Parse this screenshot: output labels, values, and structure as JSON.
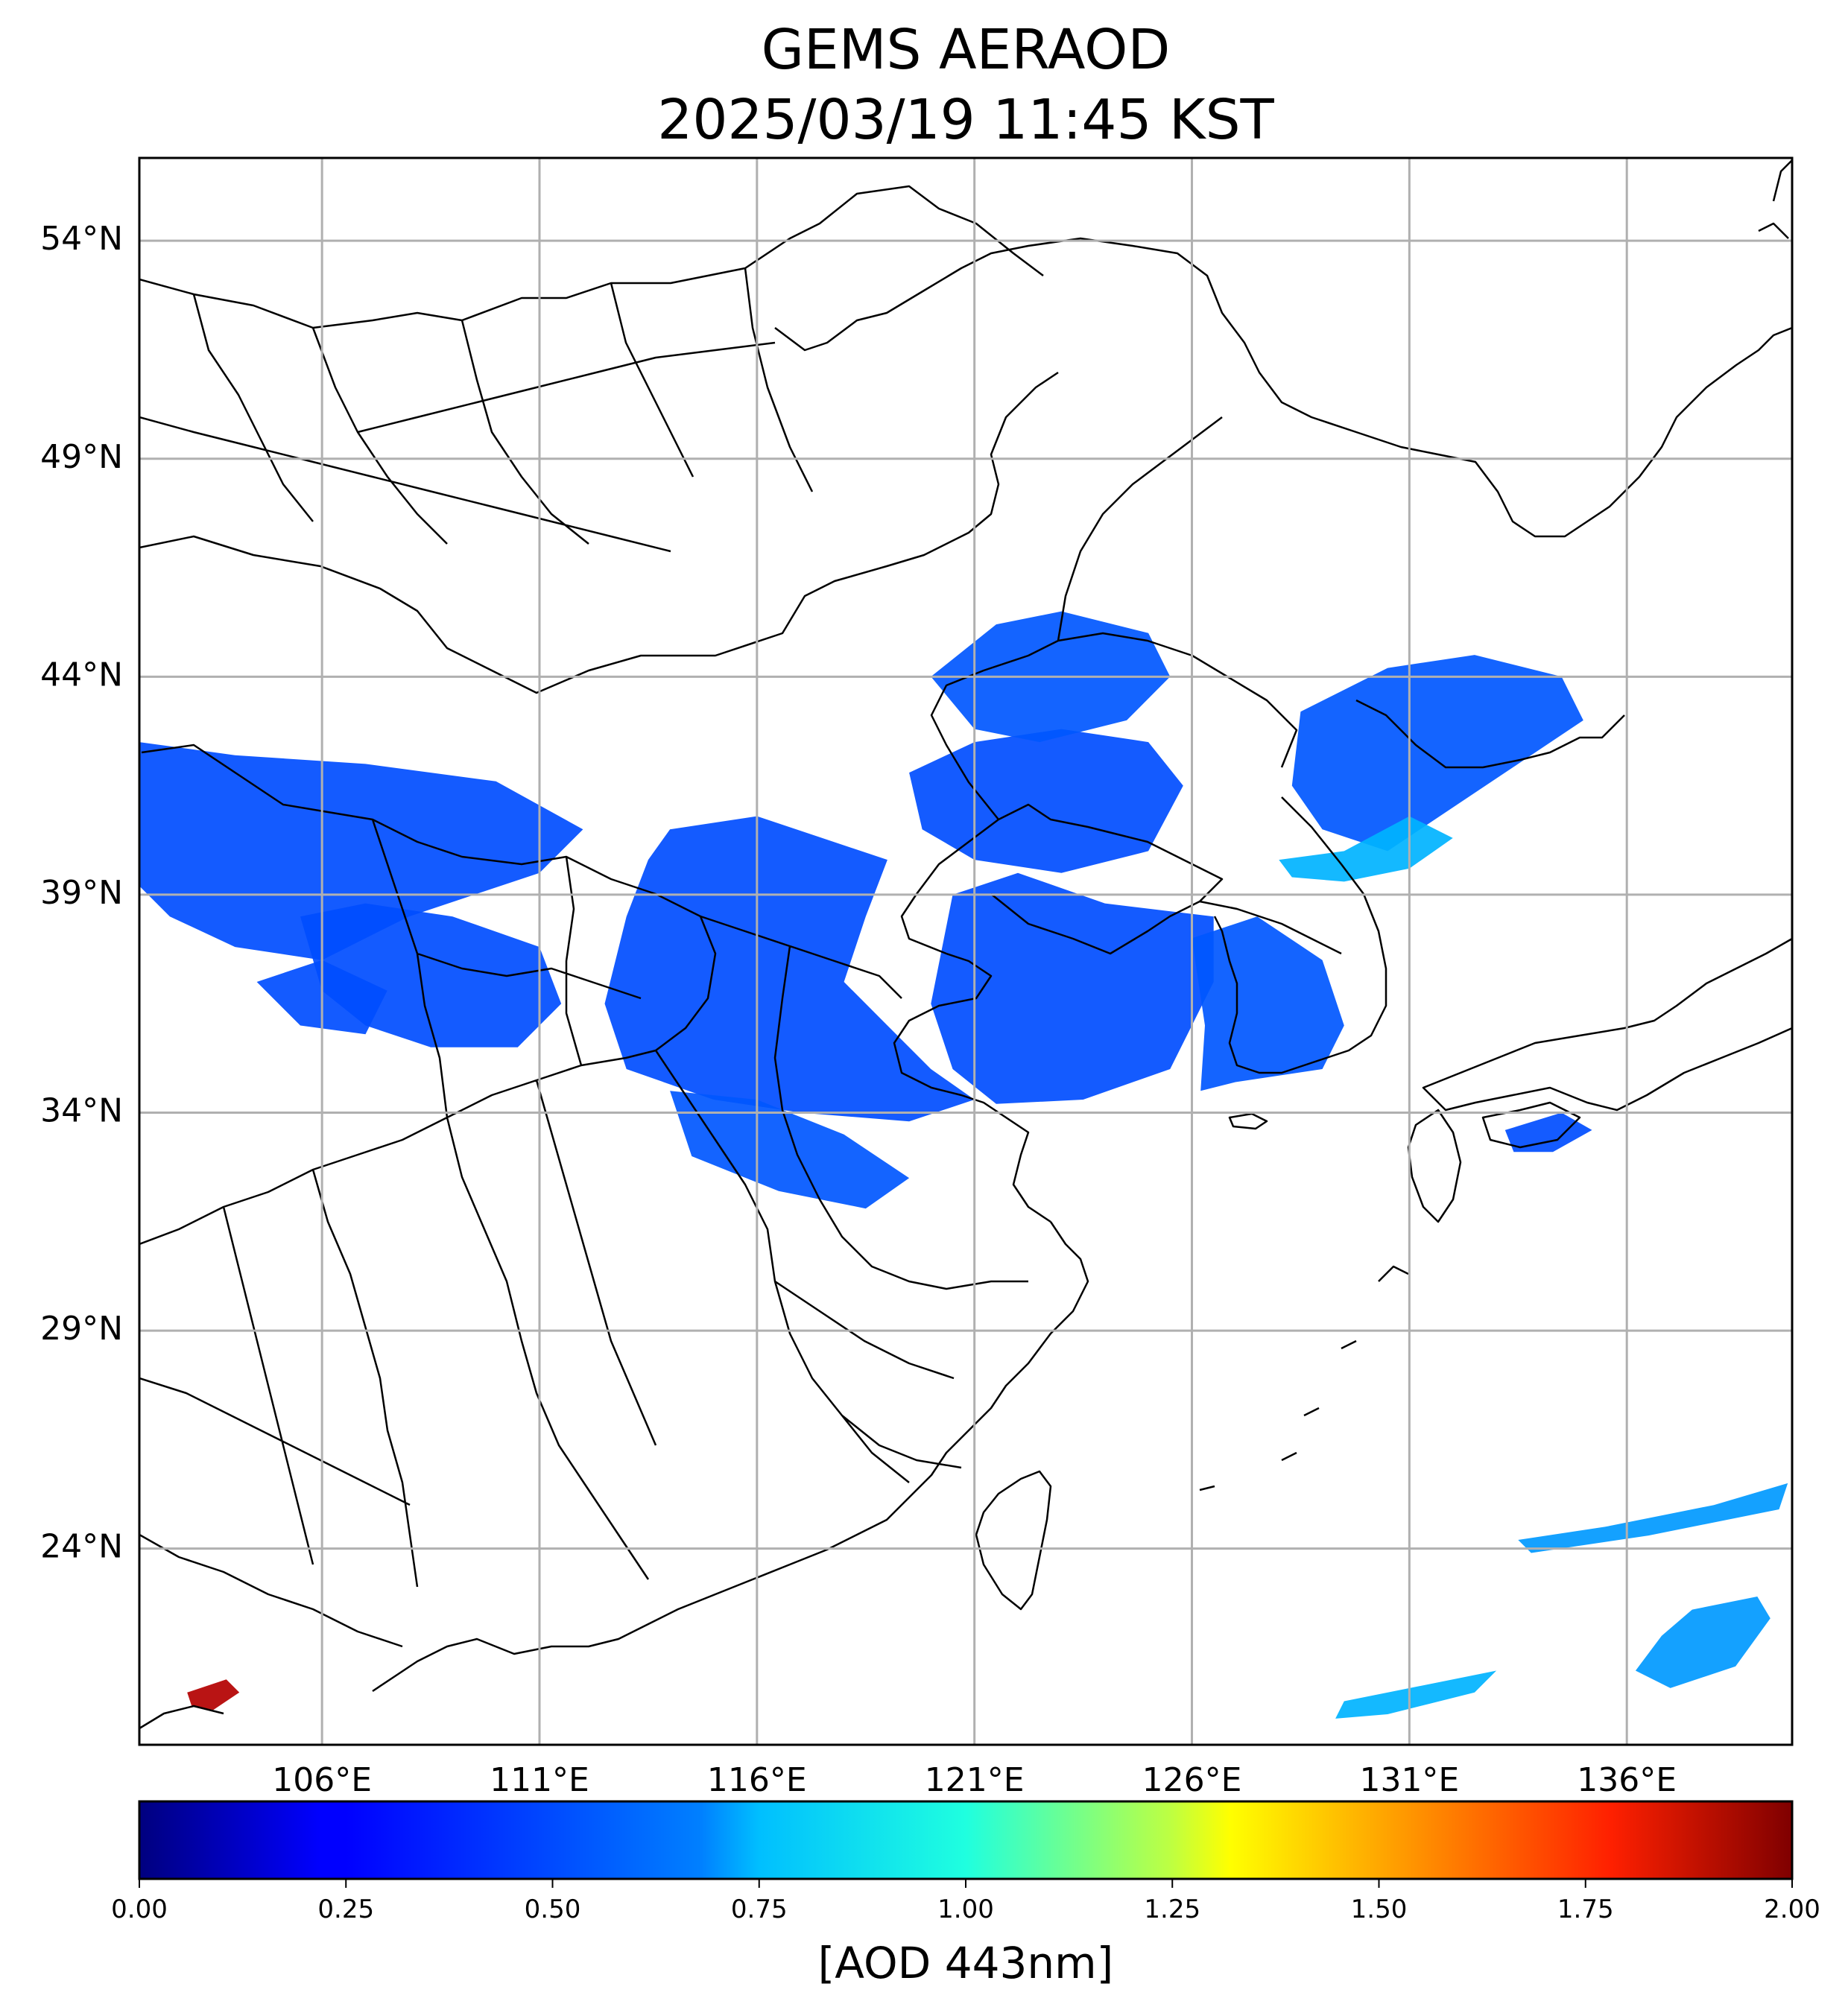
{
  "title": {
    "line1": "GEMS AERAOD",
    "line2": "2025/03/19 11:45 KST"
  },
  "map": {
    "lon_range": [
      101.8,
      139.8
    ],
    "lat_range": [
      19.5,
      55.9
    ],
    "lat_ticks": [
      {
        "value": 54,
        "label": "54°N"
      },
      {
        "value": 49,
        "label": "49°N"
      },
      {
        "value": 44,
        "label": "44°N"
      },
      {
        "value": 39,
        "label": "39°N"
      },
      {
        "value": 34,
        "label": "34°N"
      },
      {
        "value": 29,
        "label": "29°N"
      },
      {
        "value": 24,
        "label": "24°N"
      }
    ],
    "lon_ticks": [
      {
        "value": 106,
        "label": "106°E"
      },
      {
        "value": 111,
        "label": "111°E"
      },
      {
        "value": 116,
        "label": "116°E"
      },
      {
        "value": 121,
        "label": "121°E"
      },
      {
        "value": 126,
        "label": "126°E"
      },
      {
        "value": 131,
        "label": "131°E"
      },
      {
        "value": 136,
        "label": "136°E"
      }
    ],
    "gridlines": true
  },
  "colorbar": {
    "title": "[AOD 443nm]",
    "range": [
      0,
      2
    ],
    "colormap": "jet",
    "ticks": [
      "0.00",
      "0.25",
      "0.50",
      "0.75",
      "1.00",
      "1.25",
      "1.50",
      "1.75",
      "2.00"
    ]
  },
  "aod_regions": [
    {
      "name": "inner-mongolia-west",
      "points": [
        [
          101.8,
          42.5
        ],
        [
          104,
          42.2
        ],
        [
          107,
          42
        ],
        [
          110,
          41.6
        ],
        [
          112,
          40.5
        ],
        [
          111,
          39.5
        ],
        [
          108,
          38.5
        ],
        [
          106,
          37.5
        ],
        [
          104,
          37.8
        ],
        [
          102.5,
          38.5
        ],
        [
          101.8,
          39.2
        ]
      ],
      "value": 0.4
    },
    {
      "name": "ordos-loess",
      "points": [
        [
          105.5,
          38.5
        ],
        [
          107,
          38.8
        ],
        [
          109,
          38.5
        ],
        [
          111,
          37.8
        ],
        [
          111.5,
          36.5
        ],
        [
          110.5,
          35.5
        ],
        [
          108.5,
          35.5
        ],
        [
          107,
          36
        ],
        [
          106,
          36.8
        ]
      ],
      "value": 0.4
    },
    {
      "name": "north-china-plain",
      "points": [
        [
          114,
          40.5
        ],
        [
          116,
          40.8
        ],
        [
          117.5,
          40.3
        ],
        [
          119,
          39.8
        ],
        [
          118.5,
          38.5
        ],
        [
          118,
          37
        ],
        [
          119,
          36
        ],
        [
          120,
          35
        ],
        [
          121,
          34.3
        ],
        [
          119.5,
          33.8
        ],
        [
          117,
          34
        ],
        [
          115,
          34.3
        ],
        [
          113,
          35
        ],
        [
          112.5,
          36.5
        ],
        [
          113,
          38.5
        ],
        [
          113.5,
          39.8
        ]
      ],
      "value": 0.4
    },
    {
      "name": "yellow-sea",
      "points": [
        [
          120.5,
          39
        ],
        [
          122,
          39.5
        ],
        [
          124,
          38.8
        ],
        [
          126.5,
          38.5
        ],
        [
          126.5,
          37
        ],
        [
          125.5,
          35
        ],
        [
          123.5,
          34.3
        ],
        [
          121.5,
          34.2
        ],
        [
          120.5,
          35
        ],
        [
          120,
          36.5
        ]
      ],
      "value": 0.4
    },
    {
      "name": "bohai-liaodong",
      "points": [
        [
          119.5,
          41.8
        ],
        [
          121,
          42.5
        ],
        [
          123,
          42.8
        ],
        [
          125,
          42.5
        ],
        [
          125.8,
          41.5
        ],
        [
          125,
          40
        ],
        [
          123,
          39.5
        ],
        [
          121,
          39.8
        ],
        [
          119.8,
          40.5
        ]
      ],
      "value": 0.4
    },
    {
      "name": "manchuria-north",
      "points": [
        [
          120,
          44
        ],
        [
          121.5,
          45.2
        ],
        [
          123,
          45.5
        ],
        [
          125,
          45
        ],
        [
          125.5,
          44
        ],
        [
          124.5,
          43
        ],
        [
          122.5,
          42.5
        ],
        [
          121,
          42.8
        ]
      ],
      "value": 0.42
    },
    {
      "name": "korea-peninsula",
      "points": [
        [
          126,
          38
        ],
        [
          127.5,
          38.5
        ],
        [
          129,
          37.5
        ],
        [
          129.5,
          36
        ],
        [
          129,
          35
        ],
        [
          127,
          34.7
        ],
        [
          126.2,
          34.5
        ],
        [
          126.3,
          36
        ]
      ],
      "value": 0.42
    },
    {
      "name": "korea-north-east",
      "points": [
        [
          128.5,
          43.2
        ],
        [
          130.5,
          44.2
        ],
        [
          132.5,
          44.5
        ],
        [
          134.5,
          44
        ],
        [
          135,
          43
        ],
        [
          133.5,
          42
        ],
        [
          132,
          41
        ],
        [
          130.5,
          40
        ],
        [
          129,
          40.5
        ],
        [
          128.3,
          41.5
        ]
      ],
      "value": 0.42
    },
    {
      "name": "east-sea-plume",
      "points": [
        [
          128,
          39.8
        ],
        [
          129.5,
          40
        ],
        [
          131,
          40.8
        ],
        [
          132,
          40.3
        ],
        [
          131,
          39.6
        ],
        [
          129.5,
          39.3
        ],
        [
          128.3,
          39.4
        ]
      ],
      "value": 0.6
    },
    {
      "name": "gansu-south",
      "points": [
        [
          104.5,
          37
        ],
        [
          106,
          37.5
        ],
        [
          107.5,
          36.8
        ],
        [
          107,
          35.8
        ],
        [
          105.5,
          36
        ]
      ],
      "value": 0.4
    },
    {
      "name": "huai-river",
      "points": [
        [
          114,
          34.5
        ],
        [
          116,
          34.3
        ],
        [
          118,
          33.5
        ],
        [
          119.5,
          32.5
        ],
        [
          118.5,
          31.8
        ],
        [
          116.5,
          32.2
        ],
        [
          114.5,
          33
        ]
      ],
      "value": 0.42
    },
    {
      "name": "japan-south",
      "points": [
        [
          133.2,
          33.6
        ],
        [
          134.5,
          34
        ],
        [
          135.2,
          33.6
        ],
        [
          134.3,
          33.1
        ],
        [
          133.4,
          33.1
        ]
      ],
      "value": 0.4
    },
    {
      "name": "pacific-east",
      "points": [
        [
          137.5,
          22.6
        ],
        [
          139,
          22.9
        ],
        [
          139.3,
          22.4
        ],
        [
          138.5,
          21.3
        ],
        [
          137,
          20.8
        ],
        [
          136.2,
          21.2
        ],
        [
          136.8,
          22
        ]
      ],
      "value": 0.55
    },
    {
      "name": "pacific-streak",
      "points": [
        [
          133.8,
          23.9
        ],
        [
          136.5,
          24.3
        ],
        [
          139.5,
          24.9
        ],
        [
          139.7,
          25.5
        ],
        [
          138,
          25
        ],
        [
          135.5,
          24.5
        ],
        [
          133.5,
          24.2
        ]
      ],
      "value": 0.55
    },
    {
      "name": "east-china-sea-south",
      "points": [
        [
          129.5,
          20.5
        ],
        [
          131.5,
          20.9
        ],
        [
          133,
          21.2
        ],
        [
          132.5,
          20.7
        ],
        [
          130.5,
          20.2
        ],
        [
          129.3,
          20.1
        ]
      ],
      "value": 0.6
    },
    {
      "name": "guangxi-hotspot",
      "points": [
        [
          102.9,
          20.7
        ],
        [
          103.8,
          21
        ],
        [
          104.1,
          20.7
        ],
        [
          103.5,
          20.3
        ],
        [
          103,
          20.4
        ]
      ],
      "value": 1.9
    }
  ]
}
